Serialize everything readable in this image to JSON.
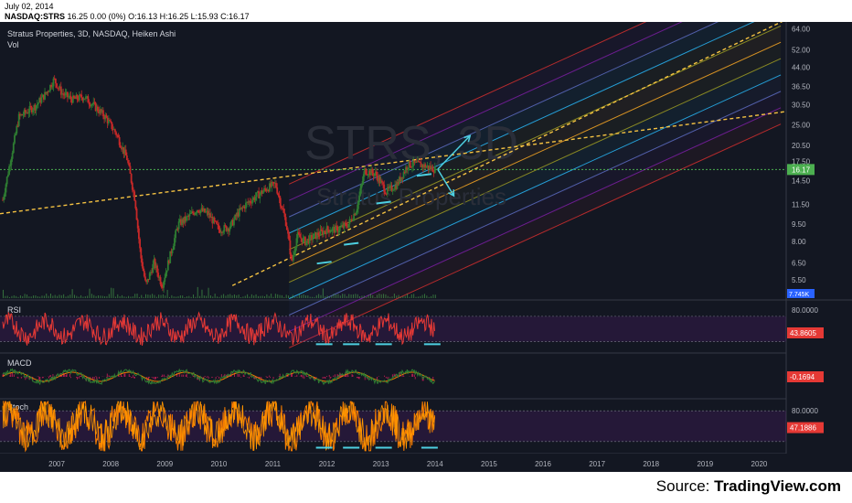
{
  "header": {
    "date": "July 02, 2014",
    "ticker": "NASDAQ:STRS",
    "quote": "16.25 0.00 (0%) O:16.13 H:16.25 L:15.93 C:16.17"
  },
  "source": {
    "label": "Source:",
    "site": "TradingView.com"
  },
  "chart_data": [
    {
      "type": "line",
      "title": "Stratus Properties, 3D, NASDAQ, Heiken Ashi",
      "subtitle": "Vol",
      "watermark": "STRS, 3D",
      "watermark_sub": "Stratus Properties",
      "x_tick_labels": [
        "2007",
        "2008",
        "2009",
        "2010",
        "2011",
        "2012",
        "2013",
        "2014",
        "2015",
        "2016",
        "2017",
        "2018",
        "2019",
        "2020"
      ],
      "y_tick_labels": [
        "64.00",
        "52.00",
        "44.00",
        "36.50",
        "30.50",
        "25.00",
        "20.50",
        "17.50",
        "14.50",
        "11.50",
        "9.50",
        "8.00",
        "6.50",
        "5.50"
      ],
      "y_scale": "log",
      "ylim": [
        4.6,
        66
      ],
      "last_price_label": "16.17",
      "last_price": 16.17,
      "volume_label": "7.745K",
      "series": [
        {
          "values": [
            [
              2006.5,
              12
            ],
            [
              2006.8,
              27
            ],
            [
              2007.1,
              30
            ],
            [
              2007.3,
              34
            ],
            [
              2007.45,
              39
            ],
            [
              2007.6,
              34
            ],
            [
              2007.8,
              32
            ],
            [
              2008.0,
              33
            ],
            [
              2008.2,
              30
            ],
            [
              2008.4,
              27
            ],
            [
              2008.6,
              23
            ],
            [
              2008.8,
              18
            ],
            [
              2008.95,
              12
            ],
            [
              2009.05,
              7
            ],
            [
              2009.15,
              5.2
            ],
            [
              2009.3,
              6.5
            ],
            [
              2009.45,
              5.2
            ],
            [
              2009.6,
              7
            ],
            [
              2009.75,
              9.5
            ],
            [
              2009.9,
              10
            ],
            [
              2010.1,
              11
            ],
            [
              2010.3,
              10.5
            ],
            [
              2010.5,
              9
            ],
            [
              2010.7,
              9.2
            ],
            [
              2010.85,
              10.5
            ],
            [
              2011.0,
              11.5
            ],
            [
              2011.2,
              12.5
            ],
            [
              2011.4,
              13.5
            ],
            [
              2011.55,
              14
            ],
            [
              2011.75,
              9.5
            ],
            [
              2011.85,
              6.5
            ],
            [
              2011.95,
              8.5
            ],
            [
              2012.1,
              8
            ],
            [
              2012.3,
              8.5
            ],
            [
              2012.5,
              9
            ],
            [
              2012.7,
              9
            ],
            [
              2012.9,
              9.5
            ],
            [
              2013.05,
              11
            ],
            [
              2013.2,
              16
            ],
            [
              2013.4,
              15.5
            ],
            [
              2013.6,
              13
            ],
            [
              2013.8,
              14
            ],
            [
              2014.0,
              17
            ],
            [
              2014.2,
              17
            ],
            [
              2014.4,
              16.5
            ],
            [
              2014.5,
              16.17
            ]
          ]
        }
      ],
      "pitchfork_colors": [
        "#d32f2f",
        "#7b1fa2",
        "#5c6bc0",
        "#29b6f6",
        "#9e9d24",
        "#f9a825",
        "#9e9d24",
        "#29b6f6",
        "#5c6bc0",
        "#7b1fa2",
        "#d32f2f"
      ],
      "colors": {
        "background": "#131722",
        "candle_up": "#2e7d32",
        "candle_down": "#c62828",
        "trendline": "#f5c242",
        "arrow": "#4dd0e1",
        "price_line": "#4caf50"
      }
    },
    {
      "type": "line",
      "title": "RSI",
      "y_tick_labels": [
        "80.0000"
      ],
      "last_value_label": "43.8605",
      "last_value": 43.8605,
      "ylim": [
        15,
        90
      ],
      "levels": [
        70,
        30
      ]
    },
    {
      "type": "line",
      "title": "MACD",
      "last_value_label": "-0.1694",
      "last_value": -0.1694
    },
    {
      "type": "line",
      "title": "Stoch",
      "y_tick_labels": [
        "80.0000"
      ],
      "last_value_label": "47.1886",
      "last_value": 47.1886,
      "ylim": [
        0,
        100
      ],
      "levels": [
        80,
        20
      ]
    }
  ]
}
